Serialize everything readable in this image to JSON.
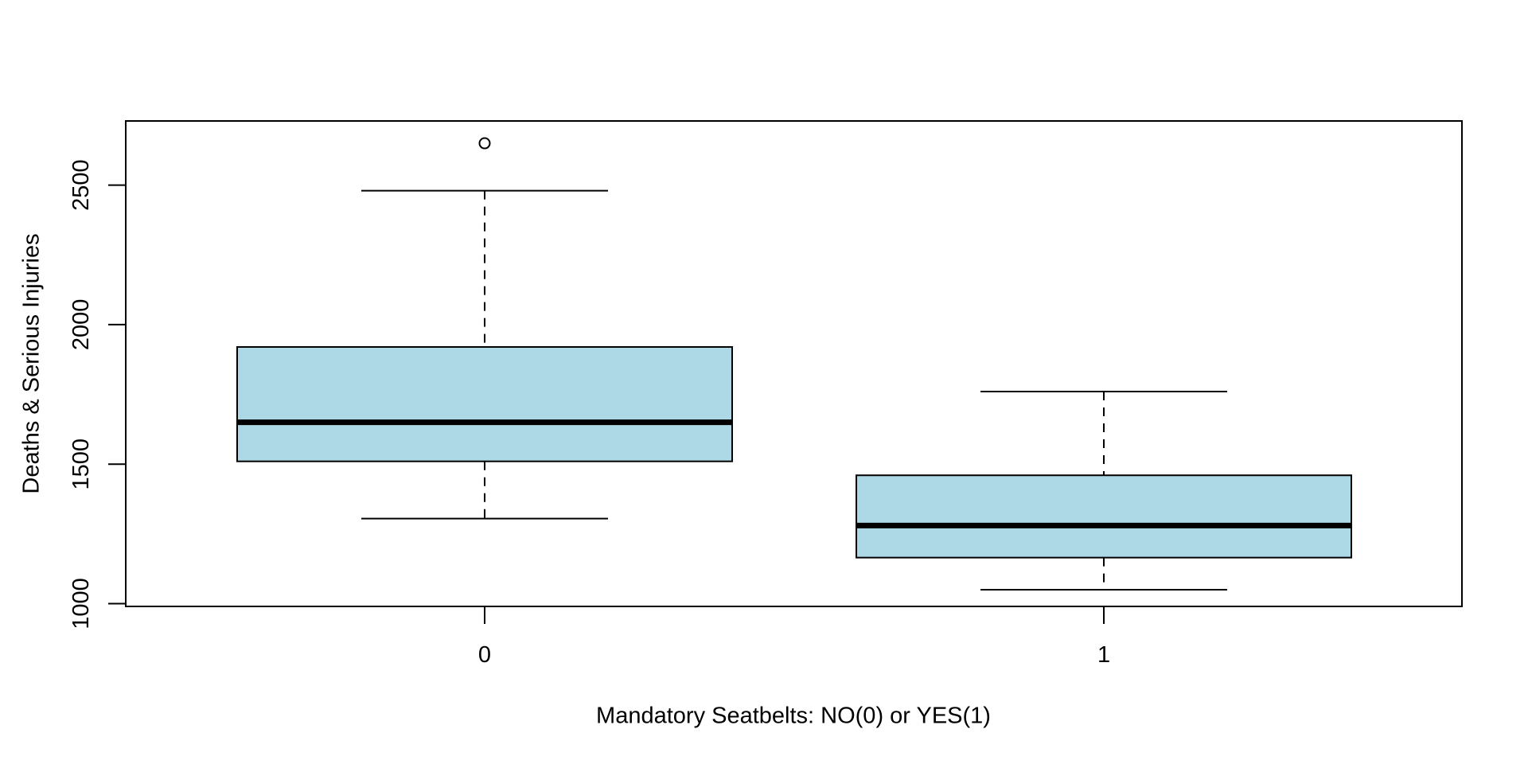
{
  "figure": {
    "background": "#ffffff",
    "frame_color": "#000000"
  },
  "chart_data": {
    "type": "boxplot",
    "title": "",
    "xlabel": "Mandatory Seatbelts: NO(0) or YES(1)",
    "ylabel": "Deaths & Serious Injuries",
    "categories": [
      "0",
      "1"
    ],
    "y_ticks": [
      1000,
      1500,
      2000,
      2500
    ],
    "ylim": [
      990,
      2730
    ],
    "grid": false,
    "legend": "none",
    "box_fill": "#ADD8E6",
    "stroke_color": "#000000",
    "series": [
      {
        "category": "0",
        "whisker_low": 1305,
        "q1": 1510,
        "median": 1650,
        "q3": 1920,
        "whisker_high": 2480,
        "outliers": [
          2650
        ]
      },
      {
        "category": "1",
        "whisker_low": 1050,
        "q1": 1165,
        "median": 1280,
        "q3": 1460,
        "whisker_high": 1760,
        "outliers": []
      }
    ]
  }
}
